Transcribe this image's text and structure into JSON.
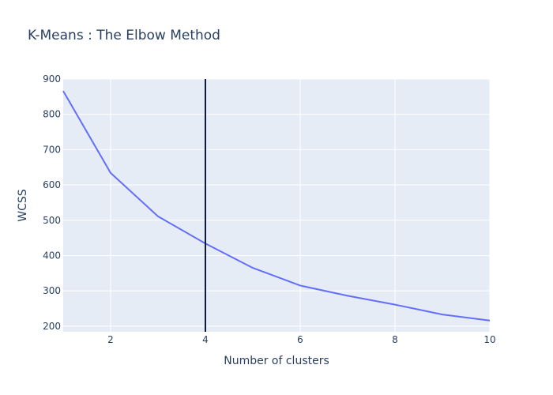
{
  "chart_data": {
    "type": "line",
    "title": "K-Means : The Elbow Method",
    "xlabel": "Number of clusters",
    "ylabel": "WCSS",
    "x": [
      1,
      2,
      3,
      4,
      5,
      6,
      7,
      8,
      9,
      10
    ],
    "series": [
      {
        "values": [
          866,
          634,
          511,
          434,
          365,
          315,
          286,
          261,
          233,
          216
        ]
      }
    ],
    "xlim": [
      1,
      10
    ],
    "ylim": [
      184,
      900
    ],
    "xticks": [
      2,
      4,
      6,
      8,
      10
    ],
    "yticks": [
      200,
      300,
      400,
      500,
      600,
      700,
      800,
      900
    ],
    "vline_x": 4,
    "grid": true,
    "colors": {
      "plot_bg": "#e5ecf6",
      "grid": "#ffffff",
      "line": "#636efa",
      "vline": "#0d1b3e",
      "text": "#2a3f5f"
    }
  }
}
